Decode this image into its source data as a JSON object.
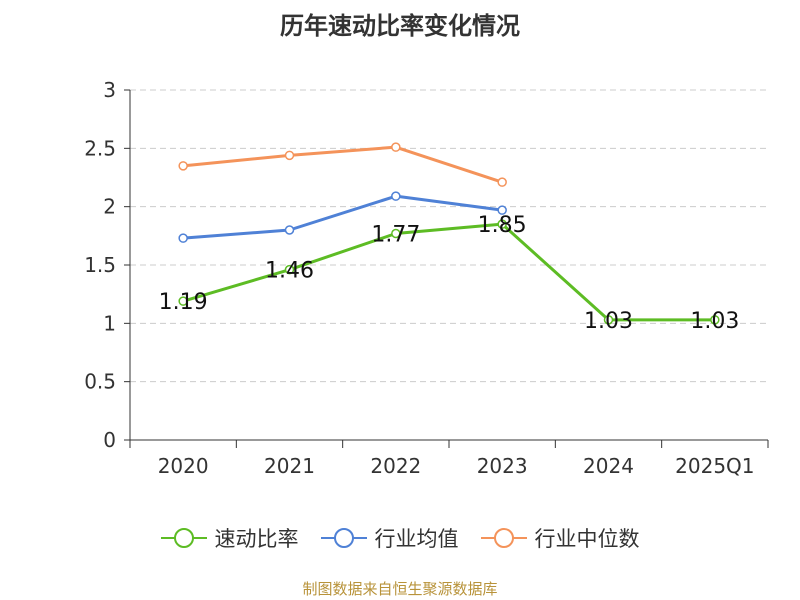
{
  "title": "历年速动比率变化情况",
  "source_note": "制图数据来自恒生聚源数据库",
  "colors": {
    "速动比率": "#5dbc24",
    "行业均值": "#4f81d6",
    "行业中位数": "#f4935a",
    "grid": "#cccccc",
    "axis": "#333333"
  },
  "chart_data": {
    "type": "line",
    "title": "历年速动比率变化情况",
    "categories": [
      "2020",
      "2021",
      "2022",
      "2023",
      "2024",
      "2025Q1"
    ],
    "ylim": [
      0,
      3
    ],
    "yticks": [
      "0",
      "0.5",
      "1",
      "1.5",
      "2",
      "2.5",
      "3"
    ],
    "grid": true,
    "legend_position": "bottom",
    "series": [
      {
        "name": "速动比率",
        "values": [
          1.19,
          1.46,
          1.77,
          1.85,
          1.03,
          1.03
        ],
        "labels": [
          "1.19",
          "1.46",
          "1.77",
          "1.85",
          "1.03",
          "1.03"
        ]
      },
      {
        "name": "行业均值",
        "values": [
          1.73,
          1.8,
          2.09,
          1.97,
          null,
          null
        ]
      },
      {
        "name": "行业中位数",
        "values": [
          2.35,
          2.44,
          2.51,
          2.21,
          null,
          null
        ]
      }
    ]
  }
}
